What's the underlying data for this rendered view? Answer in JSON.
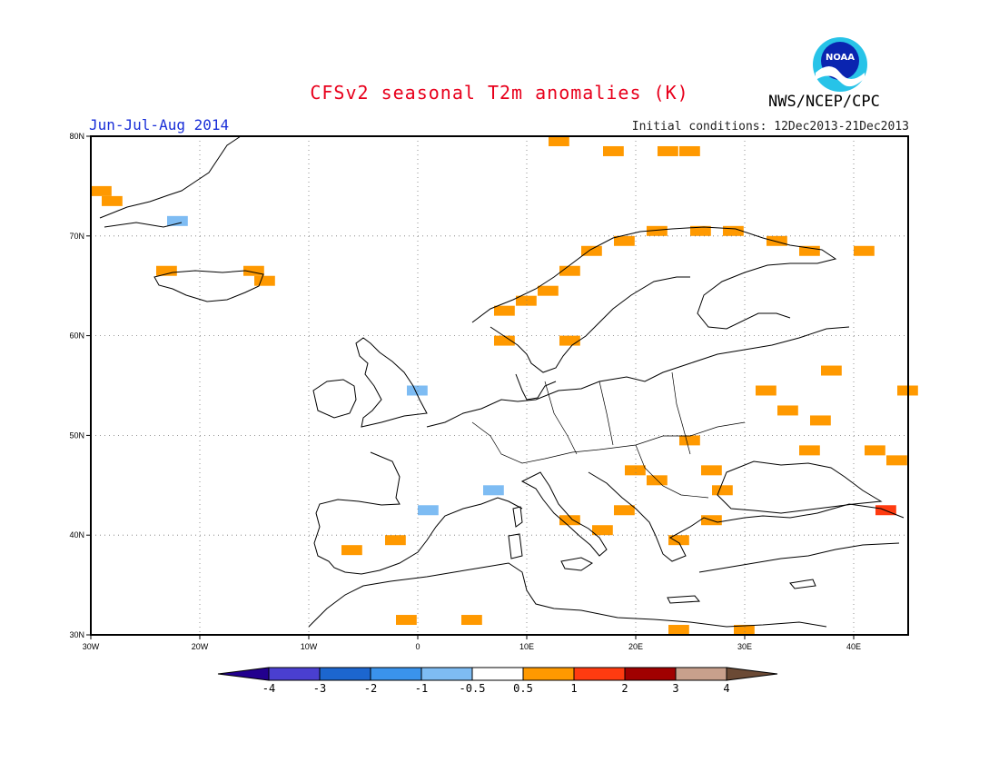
{
  "header": {
    "title": "CFSv2 seasonal T2m anomalies (K)",
    "period": "Jun-Jul-Aug 2014",
    "agency": "NWS/NCEP/CPC",
    "initial_conditions": "Initial conditions: 12Dec2013-21Dec2013",
    "logo_text": "NOAA"
  },
  "map": {
    "lon_range": [
      -30,
      45
    ],
    "lat_range": [
      30,
      80
    ],
    "grid": true,
    "lon_ticks": [
      {
        "v": -30,
        "label": "30W"
      },
      {
        "v": -20,
        "label": "20W"
      },
      {
        "v": -10,
        "label": "10W"
      },
      {
        "v": 0,
        "label": "0"
      },
      {
        "v": 10,
        "label": "10E"
      },
      {
        "v": 20,
        "label": "20E"
      },
      {
        "v": 30,
        "label": "30E"
      },
      {
        "v": 40,
        "label": "40E"
      }
    ],
    "lat_ticks": [
      {
        "v": 30,
        "label": "30N"
      },
      {
        "v": 40,
        "label": "40N"
      },
      {
        "v": 50,
        "label": "50N"
      },
      {
        "v": 60,
        "label": "60N"
      },
      {
        "v": 70,
        "label": "70N"
      },
      {
        "v": 80,
        "label": "80N"
      }
    ]
  },
  "colorbar": {
    "colors": [
      "#22008e",
      "#4a3fd0",
      "#1c66cf",
      "#3a93ec",
      "#7ebcf3",
      "#ffffff",
      "#ff9900",
      "#ff3b10",
      "#a00000",
      "#c8a08c",
      "#6b4a35"
    ],
    "tick_labels": [
      "-4",
      "-3",
      "-2",
      "-1",
      "-0.5",
      "0.5",
      "1",
      "2",
      "3",
      "4"
    ]
  },
  "chart_data": {
    "type": "heatmap",
    "title": "CFSv2 seasonal T2m anomalies (K)",
    "units": "K",
    "cell_size_deg": [
      1,
      1
    ],
    "cells": [
      {
        "lon": -30,
        "lat": 74,
        "class": "0.5-1"
      },
      {
        "lon": -29,
        "lat": 73,
        "class": "0.5-1"
      },
      {
        "lon": -23,
        "lat": 71,
        "class": "-1--0.5"
      },
      {
        "lon": -24,
        "lat": 66,
        "class": "0.5-1"
      },
      {
        "lon": -16,
        "lat": 66,
        "class": "0.5-1"
      },
      {
        "lon": -15,
        "lat": 65,
        "class": "0.5-1"
      },
      {
        "lon": -1,
        "lat": 54,
        "class": "-1--0.5"
      },
      {
        "lon": 6,
        "lat": 44,
        "class": "-1--0.5"
      },
      {
        "lon": 0,
        "lat": 42,
        "class": "-1--0.5"
      },
      {
        "lon": 12,
        "lat": 79,
        "class": "0.5-1"
      },
      {
        "lon": 17,
        "lat": 78,
        "class": "0.5-1"
      },
      {
        "lon": 22,
        "lat": 78,
        "class": "0.5-1"
      },
      {
        "lon": 24,
        "lat": 78,
        "class": "0.5-1"
      },
      {
        "lon": 7,
        "lat": 62,
        "class": "0.5-1"
      },
      {
        "lon": 9,
        "lat": 63,
        "class": "0.5-1"
      },
      {
        "lon": 11,
        "lat": 64,
        "class": "0.5-1"
      },
      {
        "lon": 13,
        "lat": 66,
        "class": "0.5-1"
      },
      {
        "lon": 15,
        "lat": 68,
        "class": "0.5-1"
      },
      {
        "lon": 18,
        "lat": 69,
        "class": "0.5-1"
      },
      {
        "lon": 21,
        "lat": 70,
        "class": "0.5-1"
      },
      {
        "lon": 25,
        "lat": 70,
        "class": "0.5-1"
      },
      {
        "lon": 28,
        "lat": 70,
        "class": "0.5-1"
      },
      {
        "lon": 32,
        "lat": 69,
        "class": "0.5-1"
      },
      {
        "lon": 35,
        "lat": 68,
        "class": "0.5-1"
      },
      {
        "lon": 40,
        "lat": 68,
        "class": "0.5-1"
      },
      {
        "lon": 7,
        "lat": 59,
        "class": "0.5-1"
      },
      {
        "lon": 13,
        "lat": 59,
        "class": "0.5-1"
      },
      {
        "lon": 37,
        "lat": 56,
        "class": "0.5-1"
      },
      {
        "lon": 31,
        "lat": 54,
        "class": "0.5-1"
      },
      {
        "lon": 33,
        "lat": 52,
        "class": "0.5-1"
      },
      {
        "lon": 36,
        "lat": 51,
        "class": "0.5-1"
      },
      {
        "lon": 44,
        "lat": 54,
        "class": "0.5-1"
      },
      {
        "lon": 24,
        "lat": 49,
        "class": "0.5-1"
      },
      {
        "lon": 35,
        "lat": 48,
        "class": "0.5-1"
      },
      {
        "lon": 41,
        "lat": 48,
        "class": "0.5-1"
      },
      {
        "lon": 43,
        "lat": 47,
        "class": "0.5-1"
      },
      {
        "lon": 19,
        "lat": 46,
        "class": "0.5-1"
      },
      {
        "lon": 21,
        "lat": 45,
        "class": "0.5-1"
      },
      {
        "lon": 26,
        "lat": 46,
        "class": "0.5-1"
      },
      {
        "lon": 27,
        "lat": 44,
        "class": "0.5-1"
      },
      {
        "lon": 18,
        "lat": 42,
        "class": "0.5-1"
      },
      {
        "lon": 26,
        "lat": 41,
        "class": "0.5-1"
      },
      {
        "lon": 23,
        "lat": 39,
        "class": "0.5-1"
      },
      {
        "lon": 16,
        "lat": 40,
        "class": "0.5-1"
      },
      {
        "lon": 13,
        "lat": 41,
        "class": "0.5-1"
      },
      {
        "lon": 42,
        "lat": 42,
        "class": "1-2"
      },
      {
        "lon": -7,
        "lat": 38,
        "class": "0.5-1"
      },
      {
        "lon": -3,
        "lat": 39,
        "class": "0.5-1"
      },
      {
        "lon": -2,
        "lat": 31,
        "class": "0.5-1"
      },
      {
        "lon": 4,
        "lat": 31,
        "class": "0.5-1"
      },
      {
        "lon": 23,
        "lat": 30,
        "class": "0.5-1"
      },
      {
        "lon": 29,
        "lat": 30,
        "class": "0.5-1"
      }
    ]
  }
}
